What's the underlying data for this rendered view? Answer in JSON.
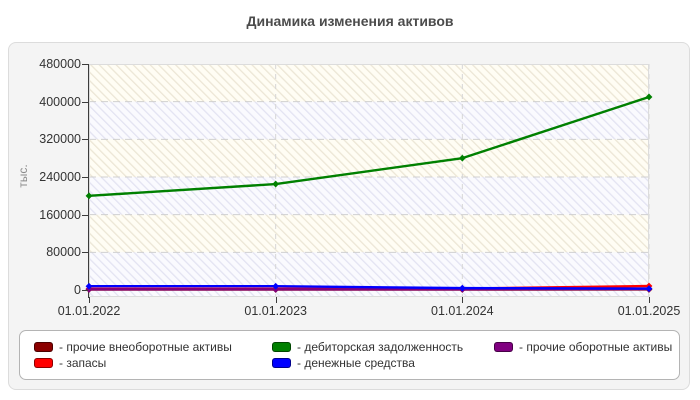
{
  "chart_data": {
    "type": "line",
    "title": "Динамика изменения активов",
    "xlabel": "",
    "ylabel": "тыс.",
    "categories": [
      "01.01.2022",
      "01.01.2023",
      "01.01.2024",
      "01.01.2025"
    ],
    "ylim": [
      0,
      480000
    ],
    "yticks": [
      480000,
      400000,
      320000,
      240000,
      160000,
      80000,
      0
    ],
    "grid": true,
    "legend_position": "bottom",
    "legend_label_prefix": "- ",
    "series": [
      {
        "name": "прочие внеоборотные активы",
        "color": "#8b0000",
        "values": [
          1000,
          1000,
          1000,
          1200
        ]
      },
      {
        "name": "запасы",
        "color": "#ff0000",
        "values": [
          2500,
          2500,
          3000,
          8500
        ]
      },
      {
        "name": "прочие оборотные активы",
        "color": "#800080",
        "values": [
          1500,
          1500,
          1500,
          2000
        ]
      },
      {
        "name": "денежные средства",
        "color": "#0000ff",
        "values": [
          8000,
          8000,
          4000,
          3000
        ]
      },
      {
        "name": "дебиторская задолженность",
        "color": "#008000",
        "values": [
          200000,
          225000,
          280000,
          410000
        ]
      }
    ],
    "legend_display_order": [
      0,
      4,
      2,
      1,
      3
    ]
  }
}
